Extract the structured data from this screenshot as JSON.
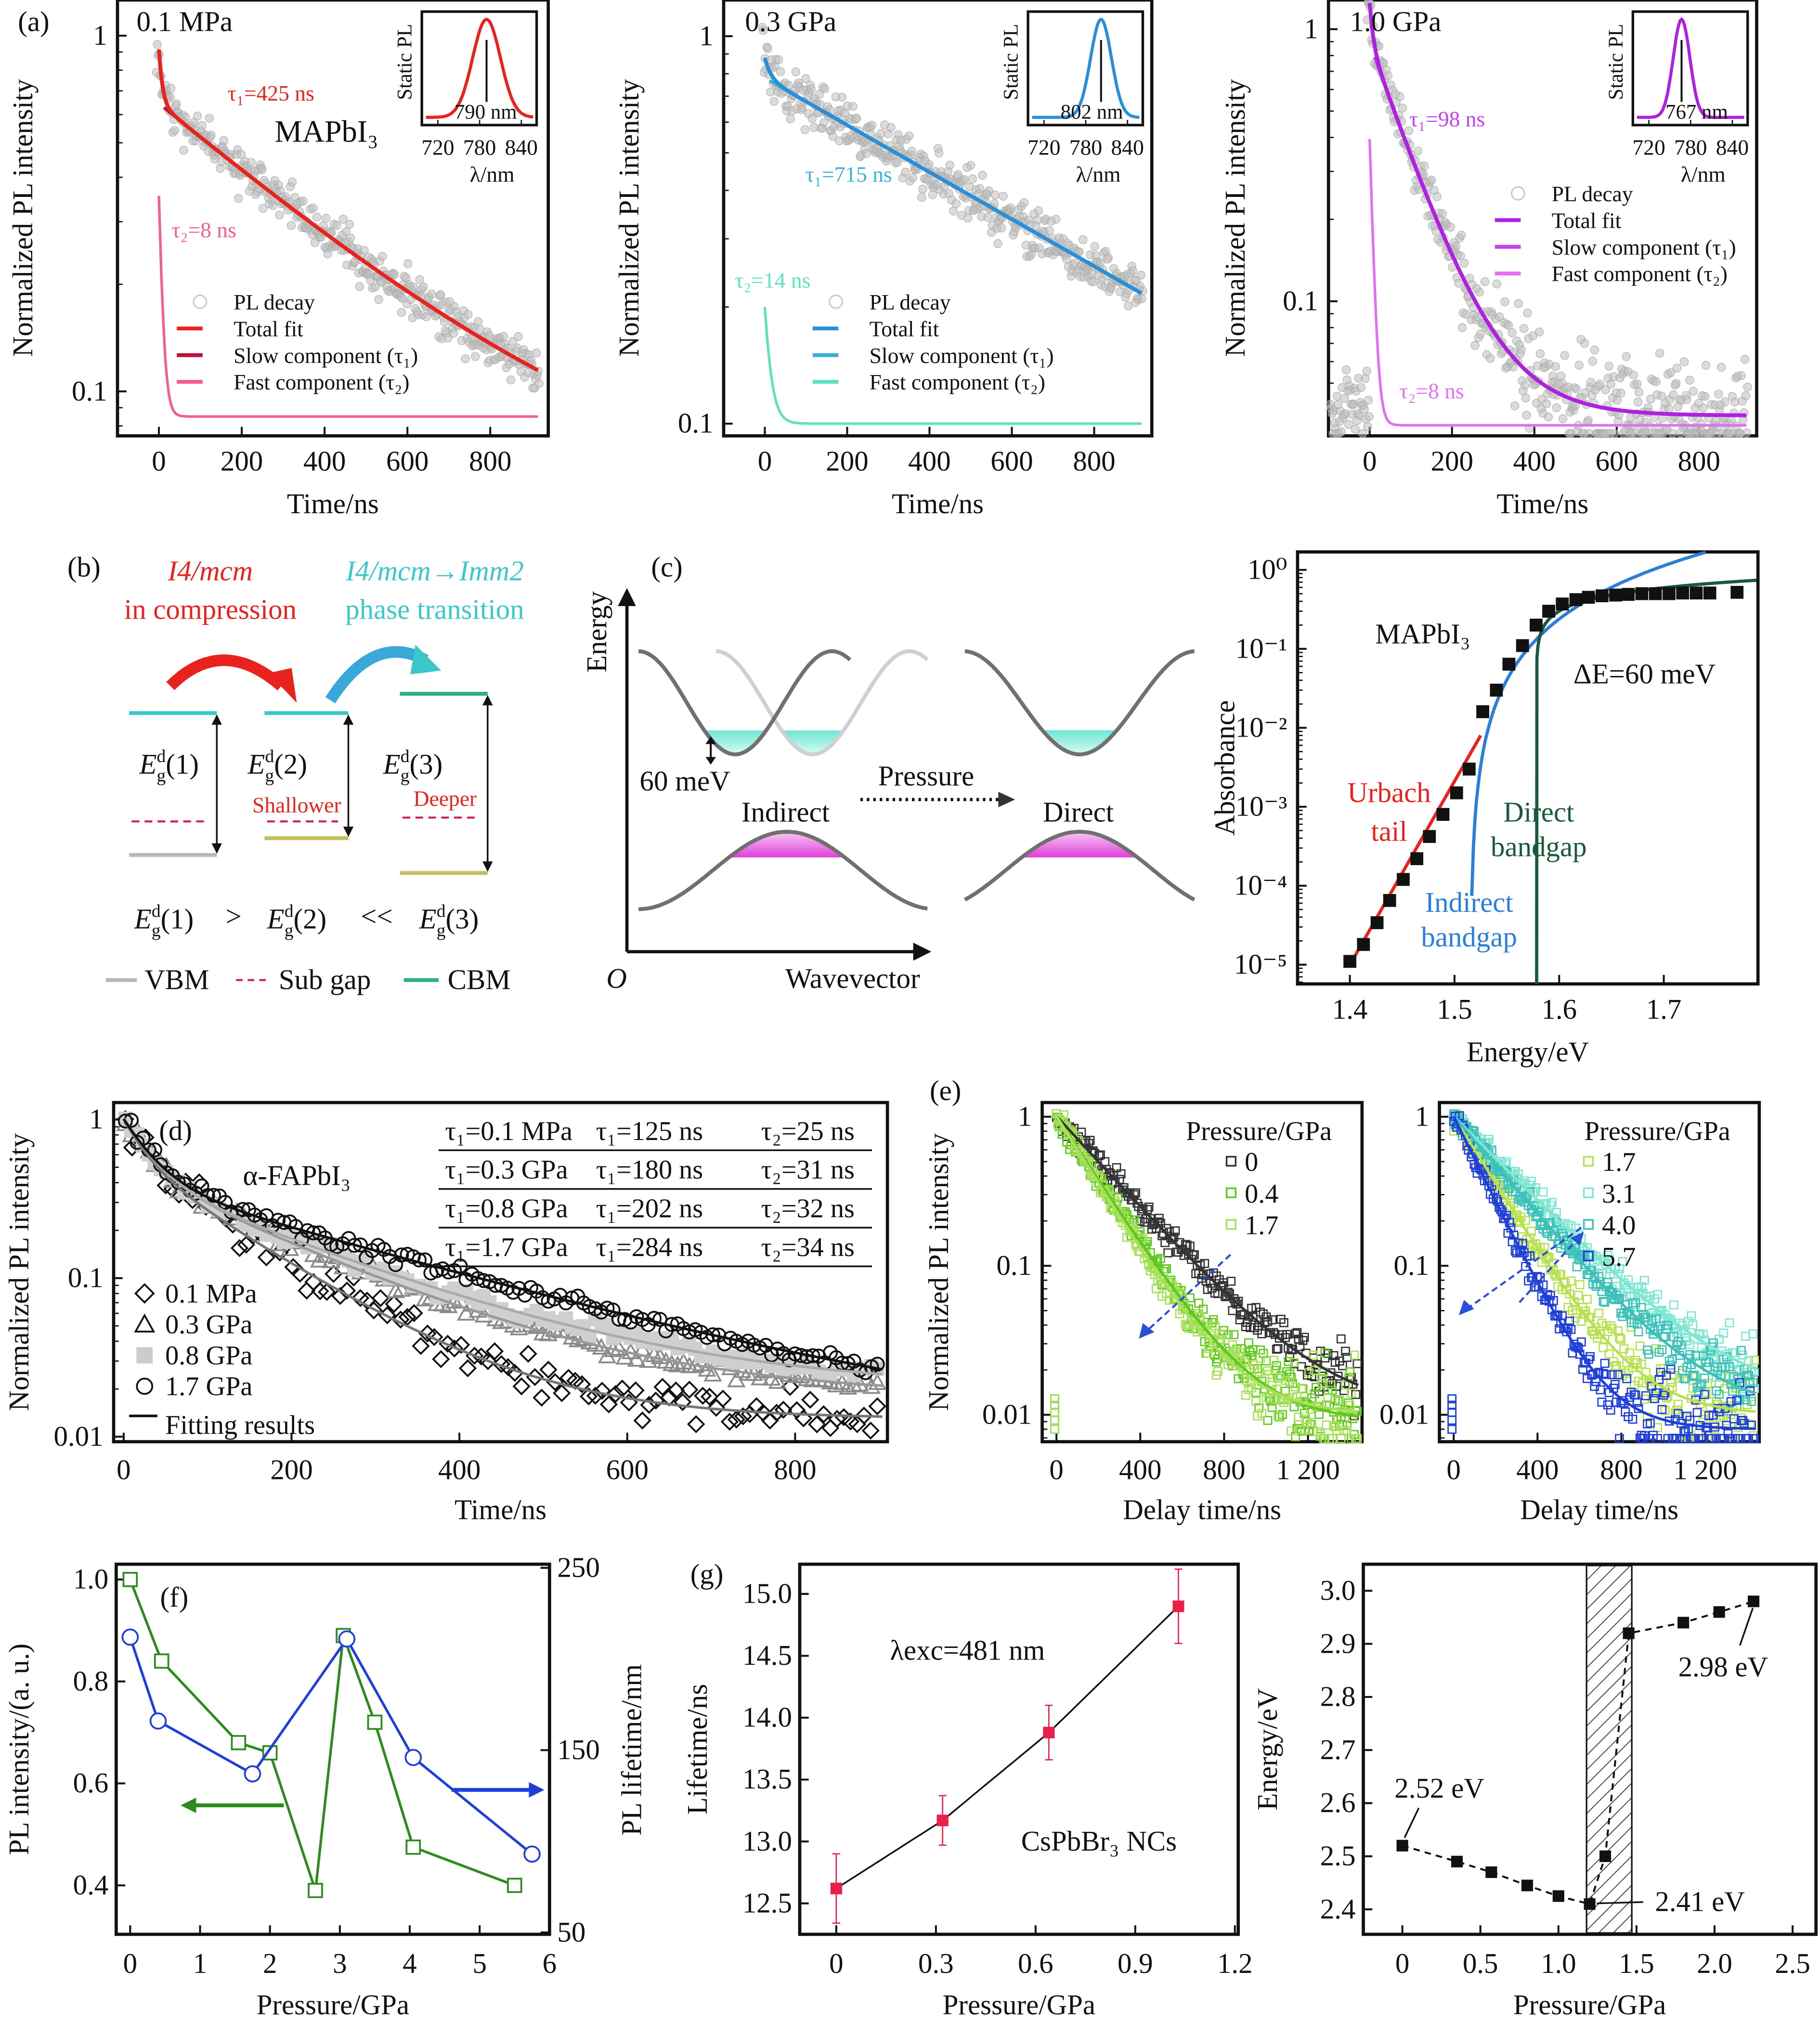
{
  "panel_labels": {
    "a": "(a)",
    "b": "(b)",
    "c": "(c)",
    "d": "(d)",
    "e": "(e)",
    "f": "(f)",
    "g": "(g)"
  },
  "panel_b": {
    "left_title_1": "I4/mcm",
    "left_title_2": "in compression",
    "right_title_1": "I4/mcm→Imm2",
    "right_title_2": "phase transition",
    "levels": [
      {
        "label": {
          "base": "E",
          "sup": "d",
          "sub": "g",
          "arg": "(1)"
        },
        "note": ""
      },
      {
        "label": {
          "base": "E",
          "sup": "d",
          "sub": "g",
          "arg": "(2)"
        },
        "note": "Shallower"
      },
      {
        "label": {
          "base": "E",
          "sup": "d",
          "sub": "g",
          "arg": "(3)"
        },
        "note": "Deeper"
      }
    ],
    "relation_ops": [
      ">",
      "<<"
    ],
    "legend": [
      "VBM",
      "Sub gap",
      "CBM"
    ],
    "colors": {
      "red": "#e8231e",
      "cyan": "#3cc8c8",
      "cbm": "#2bb08a",
      "vbm": "#b8b8b8",
      "vbm2": "#c0c060"
    }
  },
  "panel_c": {
    "y_axis": "Energy",
    "origin": "O",
    "x_axis": "Wavevector",
    "gap_label": "60 meV",
    "indirect": "Indirect",
    "direct": "Direct",
    "pressure": "Pressure"
  },
  "chart_data": [
    {
      "type": "scatter+line",
      "panel": "a",
      "pressure": "0.1 MPa",
      "material": "MAPbI₃",
      "xlabel": "Time/ns",
      "ylabel": "Normalized PL intensity",
      "xlim": [
        -100,
        940
      ],
      "ylim": [
        0.075,
        1.26
      ],
      "y_scale": "log",
      "xticks": [
        0,
        200,
        400,
        600,
        800
      ],
      "xtick_labels": [
        "0",
        "200",
        "400",
        "600",
        "800"
      ],
      "yticks": [
        1,
        0.1
      ],
      "ytick_labels": [
        "1",
        "0.1"
      ],
      "tau1_ns": 425,
      "tau2_ns": 8,
      "tau1_text": "τ₁=425 ns",
      "tau2_text": "τ₂=8 ns",
      "fit": {
        "slow_amplitude": 0.6,
        "slow_baseline": 0.045,
        "fast_amplitude": 0.27,
        "fast_baseline": 0.085
      },
      "legend": [
        "PL decay",
        "Total fit",
        "Slow component (τ₁)",
        "Fast component (τ₂)"
      ],
      "colors": {
        "data": "#bdbdbd",
        "total": "#e8231e",
        "slow": "#b5123c",
        "fast": "#f0608a"
      },
      "inset": {
        "ylabel": "Static PL",
        "xlabel": "λ/nm",
        "xticks": [
          720,
          780,
          840
        ],
        "xtick_labels": [
          "720",
          "780",
          "840"
        ],
        "xlim": [
          697,
          862
        ],
        "peak_nm": 790,
        "peak_text": "790 nm"
      }
    },
    {
      "type": "scatter+line",
      "panel": "a",
      "pressure": "0.3 GPa",
      "xlabel": "Time/ns",
      "ylabel": "Normalized PL intensity",
      "xlim": [
        -100,
        940
      ],
      "ylim": [
        0.093,
        1.24
      ],
      "y_scale": "log",
      "xticks": [
        0,
        200,
        400,
        600,
        800
      ],
      "xtick_labels": [
        "0",
        "200",
        "400",
        "600",
        "800"
      ],
      "yticks": [
        1,
        0.1
      ],
      "ytick_labels": [
        "1",
        "0.1"
      ],
      "tau1_ns": 715,
      "tau2_ns": 14,
      "tau1_text": "τ₁=715 ns",
      "tau2_text": "τ₂=14 ns",
      "fit": {
        "slow_amplitude": 0.78,
        "slow_baseline": 0.0,
        "fast_amplitude": 0.1,
        "fast_baseline": 0.1
      },
      "legend": [
        "PL decay",
        "Total fit",
        "Slow component (τ₁)",
        "Fast component (τ₂)"
      ],
      "colors": {
        "data": "#bdbdbd",
        "total": "#2a8fd6",
        "slow": "#3ab0d8",
        "fast": "#5fe0c0"
      },
      "inset": {
        "ylabel": "Static PL",
        "xlabel": "λ/nm",
        "xticks": [
          720,
          780,
          840
        ],
        "xtick_labels": [
          "720",
          "780",
          "840"
        ],
        "xlim": [
          697,
          862
        ],
        "peak_nm": 802,
        "peak_text": "802 nm"
      }
    },
    {
      "type": "scatter+line",
      "panel": "a",
      "pressure": "1.0 GPa",
      "xlabel": "Time/ns",
      "ylabel": "Normalized PL intensity",
      "xlim": [
        -100,
        940
      ],
      "ylim": [
        0.032,
        1.28
      ],
      "y_scale": "log",
      "xticks": [
        0,
        200,
        400,
        600,
        800
      ],
      "xtick_labels": [
        "0",
        "200",
        "400",
        "600",
        "800"
      ],
      "yticks": [
        1,
        0.1
      ],
      "ytick_labels": [
        "1",
        "0.1"
      ],
      "tau1_ns": 98,
      "tau2_ns": 8,
      "tau1_text": "τ₁=98 ns",
      "tau2_text": "τ₂=8 ns",
      "fit": {
        "slow_amplitude": 0.85,
        "slow_baseline": 0.038,
        "fast_amplitude": 0.36,
        "fast_baseline": 0.035
      },
      "legend": [
        "PL decay",
        "Total fit",
        "Slow component (τ₁)",
        "Fast component (τ₂)"
      ],
      "colors": {
        "data": "#bdbdbd",
        "total": "#b020e0",
        "slow": "#c040f0",
        "fast": "#e070f0"
      },
      "inset": {
        "ylabel": "Static PL",
        "xlabel": "λ/nm",
        "xticks": [
          720,
          780,
          840
        ],
        "xtick_labels": [
          "720",
          "780",
          "840"
        ],
        "xlim": [
          697,
          862
        ],
        "peak_nm": 767,
        "peak_text": "767 nm"
      }
    },
    {
      "type": "scatter+line",
      "panel": "c",
      "material": "MAPbI₃",
      "delta_text": "ΔE=60 meV",
      "xlabel": "Energy/eV",
      "ylabel": "Absorbance",
      "xlim": [
        1.35,
        1.79
      ],
      "ylim": [
        5.7e-06,
        1.69
      ],
      "y_scale": "log",
      "xticks": [
        1.4,
        1.5,
        1.6,
        1.7
      ],
      "xtick_labels": [
        "1.4",
        "1.5",
        "1.6",
        "1.7"
      ],
      "yticks": [
        1,
        0.1,
        0.01,
        0.001,
        0.0001,
        1e-05
      ],
      "ytick_labels": [
        "10⁰",
        "10⁻¹",
        "10⁻²",
        "10⁻³",
        "10⁻⁴",
        "10⁻⁵"
      ],
      "points": [
        [
          1.4,
          1.1e-05
        ],
        [
          1.413,
          1.8e-05
        ],
        [
          1.426,
          3.4e-05
        ],
        [
          1.438,
          6.5e-05
        ],
        [
          1.451,
          0.00012
        ],
        [
          1.464,
          0.00022
        ],
        [
          1.476,
          0.00042
        ],
        [
          1.489,
          0.0008
        ],
        [
          1.502,
          0.0015
        ],
        [
          1.514,
          0.003
        ],
        [
          1.527,
          0.016
        ],
        [
          1.54,
          0.03
        ],
        [
          1.552,
          0.064
        ],
        [
          1.565,
          0.11
        ],
        [
          1.578,
          0.2
        ],
        [
          1.59,
          0.3
        ],
        [
          1.603,
          0.37
        ],
        [
          1.616,
          0.42
        ],
        [
          1.628,
          0.45
        ],
        [
          1.641,
          0.47
        ],
        [
          1.654,
          0.48
        ],
        [
          1.666,
          0.49
        ],
        [
          1.679,
          0.5
        ],
        [
          1.692,
          0.5
        ],
        [
          1.705,
          0.5
        ],
        [
          1.718,
          0.51
        ],
        [
          1.731,
          0.51
        ],
        [
          1.744,
          0.51
        ],
        [
          1.77,
          0.52
        ]
      ],
      "urbach_line": [
        [
          1.4,
          1e-05
        ],
        [
          1.525,
          0.008
        ]
      ],
      "annotations": {
        "urbach": [
          "Urbach",
          "tail"
        ],
        "direct": [
          "Direct",
          "bandgap"
        ],
        "indirect": [
          "Indirect",
          "bandgap"
        ]
      },
      "colors": {
        "points": "#111",
        "urbach": "#e8231e",
        "indirect": "#2a7fd6",
        "direct": "#1a5a3a"
      }
    },
    {
      "type": "scatter+line",
      "panel": "d",
      "material": "α-FAPbI₃",
      "xlabel": "Time/ns",
      "ylabel": "Normalized PL intensity",
      "xlim": [
        -12,
        910
      ],
      "ylim": [
        0.0093,
        1.28
      ],
      "y_scale": "log",
      "xticks": [
        0,
        200,
        400,
        600,
        800
      ],
      "xtick_labels": [
        "0",
        "200",
        "400",
        "600",
        "800"
      ],
      "yticks": [
        1,
        0.1,
        0.01
      ],
      "ytick_labels": [
        "1",
        "0.1",
        "0.01"
      ],
      "series": [
        {
          "name": "0.1 MPa",
          "marker": "diamond",
          "tau1_ns": 125,
          "tau2_ns": 25,
          "fit": {
            "a1": 0.55,
            "a2": 0.45,
            "b": 0.013
          },
          "color": "#111",
          "line": "#777"
        },
        {
          "name": "0.3 GPa",
          "marker": "triangle",
          "tau1_ns": 180,
          "tau2_ns": 31,
          "fit": {
            "a1": 0.45,
            "a2": 0.55,
            "b": 0.018
          },
          "color": "#8a8a8a",
          "line": "#999"
        },
        {
          "name": "0.8 GPa",
          "marker": "square",
          "tau1_ns": 202,
          "tau2_ns": 32,
          "fit": {
            "a1": 0.42,
            "a2": 0.58,
            "b": 0.02
          },
          "color": "#cfcfcf",
          "line": "#aaa"
        },
        {
          "name": "1.7 GPa",
          "marker": "circle",
          "tau1_ns": 284,
          "tau2_ns": 34,
          "fit": {
            "a1": 0.4,
            "a2": 0.6,
            "b": 0.01
          },
          "color": "#111",
          "line": "#111"
        }
      ],
      "fit_legend": "Fitting results",
      "table": [
        [
          "τ₁=0.1 MPa",
          "τ₁=125 ns",
          "τ₂=25 ns"
        ],
        [
          "τ₁=0.3 GPa",
          "τ₁=180 ns",
          "τ₂=31 ns"
        ],
        [
          "τ₁=0.8 GPa",
          "τ₁=202 ns",
          "τ₂=32 ns"
        ],
        [
          "τ₁=1.7 GPa",
          "τ₁=284 ns",
          "τ₂=34 ns"
        ]
      ]
    },
    {
      "type": "scatter+line",
      "panel": "e",
      "legend_title": "Pressure/GPa",
      "xlabel": "Delay time/ns",
      "ylabel": "Normalized PL intensity",
      "xlim": [
        -68,
        1458
      ],
      "ylim": [
        0.0066,
        1.245
      ],
      "y_scale": "log",
      "xticks": [
        0,
        400,
        800,
        1200
      ],
      "xtick_labels": [
        "0",
        "400",
        "800",
        "1 200"
      ],
      "yticks": [
        1,
        0.1,
        0.01
      ],
      "ytick_labels": [
        "1",
        "0.1",
        "0.01"
      ],
      "series": [
        {
          "name": "0",
          "tau_ns": 280,
          "baseline": 0.01,
          "color": "#333333"
        },
        {
          "name": "0.4",
          "tau_ns": 200,
          "baseline": 0.009,
          "color": "#5fc81e"
        },
        {
          "name": "1.7",
          "tau_ns": 190,
          "baseline": 0.01,
          "color": "#a8e05a"
        }
      ]
    },
    {
      "type": "scatter+line",
      "panel": "e",
      "legend_title": "Pressure/GPa",
      "xlabel": "Delay time/ns",
      "ylabel": "",
      "xlim": [
        -68,
        1458
      ],
      "ylim": [
        0.0066,
        1.245
      ],
      "y_scale": "log",
      "xticks": [
        0,
        400,
        800,
        1200
      ],
      "xtick_labels": [
        "0",
        "400",
        "800",
        "1 200"
      ],
      "yticks": [
        1,
        0.1,
        0.01
      ],
      "ytick_labels": [
        "1",
        "0.1",
        "0.01"
      ],
      "series": [
        {
          "name": "1.7",
          "tau_ns": 190,
          "baseline": 0.01,
          "color": "#b8e050"
        },
        {
          "name": "3.1",
          "tau_ns": 300,
          "baseline": 0.012,
          "color": "#7fe6d2"
        },
        {
          "name": "4.0",
          "tau_ns": 260,
          "baseline": 0.01,
          "color": "#3cc0b8"
        },
        {
          "name": "5.7",
          "tau_ns": 150,
          "baseline": 0.008,
          "color": "#1f3fd8"
        }
      ]
    },
    {
      "type": "line",
      "panel": "f",
      "xlabel": "Pressure/GPa",
      "ylabel": "PL intensity/(a. u.)",
      "ylabel_right": "PL lifetime/nm",
      "xlim": [
        -0.2,
        6.0
      ],
      "ylim": [
        0.304,
        1.03
      ],
      "ylim_right": [
        49,
        252
      ],
      "xticks": [
        0,
        1,
        2,
        3,
        4,
        5,
        6
      ],
      "xtick_labels": [
        "0",
        "1",
        "2",
        "3",
        "4",
        "5",
        "6"
      ],
      "yticks": [
        1.0,
        0.8,
        0.6,
        0.4
      ],
      "ytick_labels": [
        "1.0",
        "0.8",
        "0.6",
        "0.4"
      ],
      "yticks_right": [
        250,
        150,
        50
      ],
      "ytick_labels_right": [
        "250",
        "150",
        "50"
      ],
      "series": [
        {
          "axis": "left",
          "marker": "square",
          "color": "#2e8b1e",
          "x": [
            0,
            0.45,
            1.55,
            2.0,
            2.65,
            3.05,
            3.5,
            4.05,
            5.5
          ],
          "y": [
            1.0,
            0.84,
            0.68,
            0.66,
            0.39,
            0.89,
            0.72,
            0.475,
            0.4
          ]
        },
        {
          "axis": "right",
          "marker": "circle",
          "color": "#1f3fd8",
          "x": [
            0,
            0.4,
            1.75,
            3.1,
            4.05,
            5.75
          ],
          "y": [
            212,
            166,
            137,
            211,
            146,
            93
          ]
        }
      ]
    },
    {
      "type": "line",
      "panel": "g",
      "note": "λexc=481 nm",
      "sample": "CsPbBr₃ NCs",
      "xlabel": "Pressure/GPa",
      "ylabel": "Lifetime/ns",
      "xlim": [
        -0.11,
        1.21
      ],
      "ylim": [
        12.25,
        15.24
      ],
      "xticks": [
        0,
        0.3,
        0.6,
        0.9,
        1.2
      ],
      "xtick_labels": [
        "0",
        "0.3",
        "0.6",
        "0.9",
        "1.2"
      ],
      "yticks": [
        15.0,
        14.5,
        14.0,
        13.5,
        13.0,
        12.5
      ],
      "ytick_labels": [
        "15.0",
        "14.5",
        "14.0",
        "13.5",
        "13.0",
        "12.5"
      ],
      "x": [
        0,
        0.32,
        0.64,
        1.03
      ],
      "y": [
        12.62,
        13.17,
        13.88,
        14.9
      ],
      "err": [
        0.28,
        0.2,
        0.22,
        0.3
      ],
      "color": "#e8204a"
    },
    {
      "type": "line",
      "panel": "g-right",
      "xlabel": "Pressure/GPa",
      "ylabel": "Energy/eV",
      "xlim": [
        -0.25,
        2.65
      ],
      "ylim": [
        2.353,
        3.05
      ],
      "xticks": [
        0,
        0.5,
        1.0,
        1.5,
        2.0,
        2.5
      ],
      "xtick_labels": [
        "0",
        "0.5",
        "1.0",
        "1.5",
        "2.0",
        "2.5"
      ],
      "yticks": [
        3.0,
        2.9,
        2.8,
        2.7,
        2.6,
        2.5,
        2.4
      ],
      "ytick_labels": [
        "3.0",
        "2.9",
        "2.8",
        "2.7",
        "2.6",
        "2.5",
        "2.4"
      ],
      "x": [
        0,
        0.35,
        0.57,
        0.8,
        1.0,
        1.2,
        1.3,
        1.45,
        1.8,
        2.03,
        2.25
      ],
      "y": [
        2.52,
        2.49,
        2.47,
        2.445,
        2.425,
        2.41,
        2.5,
        2.92,
        2.94,
        2.96,
        2.98
      ],
      "hatched_range": [
        1.18,
        1.47
      ],
      "annotations": [
        "2.52 eV",
        "2.41 eV",
        "2.98 eV"
      ]
    }
  ]
}
